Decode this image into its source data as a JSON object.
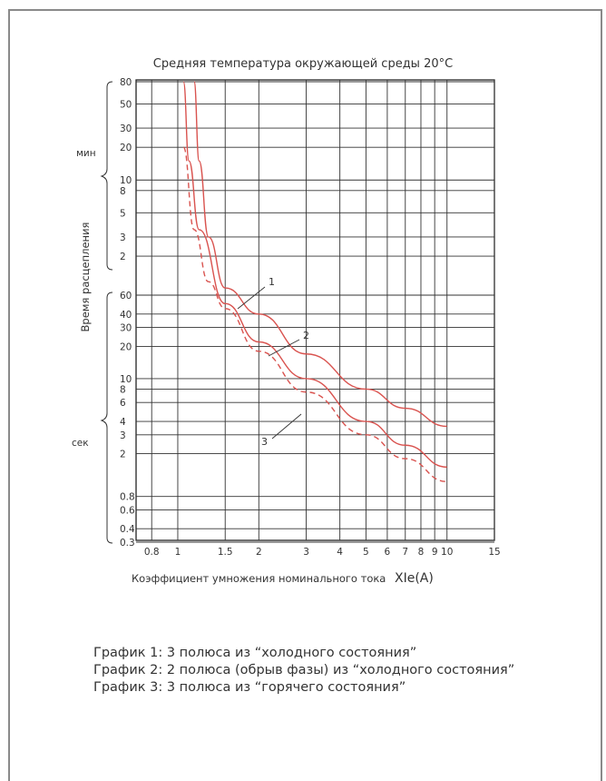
{
  "chart_data": {
    "type": "line",
    "title": "Средняя температура окружающей среды 20°C",
    "xlabel": "Коэффициент умножения номинального тока",
    "xlabel_unit": "XIe(A)",
    "ylabel": "Время расцепления",
    "x_scale": "log",
    "x_ticks": [
      "0.8",
      "1",
      "1.5",
      "2",
      "3",
      "4",
      "5",
      "6",
      "7",
      "8",
      "9",
      "10",
      "15"
    ],
    "x_tick_values": [
      0.8,
      1,
      1.5,
      2,
      3,
      4,
      5,
      6,
      7,
      8,
      9,
      10,
      15
    ],
    "y_scale": "log",
    "y_ticks_min": [
      "80",
      "50",
      "30",
      "20",
      "10",
      "8",
      "5",
      "3",
      "2"
    ],
    "y_ticks_sec": [
      "60",
      "40",
      "30",
      "20",
      "10",
      "8",
      "6",
      "4",
      "3",
      "2",
      "0.8",
      "0.6",
      "0.4",
      "0.3"
    ],
    "y_group_labels": {
      "minutes": "мин",
      "seconds": "сек"
    },
    "grid": true,
    "series": [
      {
        "name": "1",
        "line": "solid",
        "points": [
          [
            1.15,
            "80 мин"
          ],
          [
            1.2,
            "15 мин"
          ],
          [
            1.3,
            "3 мин"
          ],
          [
            1.5,
            "70 с"
          ],
          [
            2,
            "40 с"
          ],
          [
            3,
            "17 с"
          ],
          [
            5,
            "8 с"
          ],
          [
            7,
            "5.3 с"
          ],
          [
            10,
            "3.6 с"
          ]
        ]
      },
      {
        "name": "2",
        "line": "solid",
        "points": [
          [
            1.05,
            "80 мин"
          ],
          [
            1.1,
            "15 мин"
          ],
          [
            1.2,
            "3.5 мин"
          ],
          [
            1.5,
            "50 с"
          ],
          [
            2,
            "22 с"
          ],
          [
            3,
            "10 с"
          ],
          [
            5,
            "4 с"
          ],
          [
            7,
            "2.4 с"
          ],
          [
            10,
            "1.5 с"
          ]
        ]
      },
      {
        "name": "3",
        "line": "dashed",
        "points": [
          [
            1.05,
            "20 мин"
          ],
          [
            1.15,
            "3.5 мин"
          ],
          [
            1.3,
            "80 с"
          ],
          [
            1.5,
            "45 с"
          ],
          [
            2,
            "18 с"
          ],
          [
            3,
            "7.5 с"
          ],
          [
            5,
            "3 с"
          ],
          [
            7,
            "1.8 с"
          ],
          [
            10,
            "1.1 с"
          ]
        ]
      }
    ],
    "annotations": [
      "1",
      "2",
      "3"
    ],
    "color": "#d9534f"
  },
  "legend_text": [
    "График 1: 3 полюса из “холодного состояния”",
    "График 2: 2 полюса (обрыв фазы) из “холодного состояния”",
    "График 3: 3 полюса из “горячего состояния”"
  ]
}
